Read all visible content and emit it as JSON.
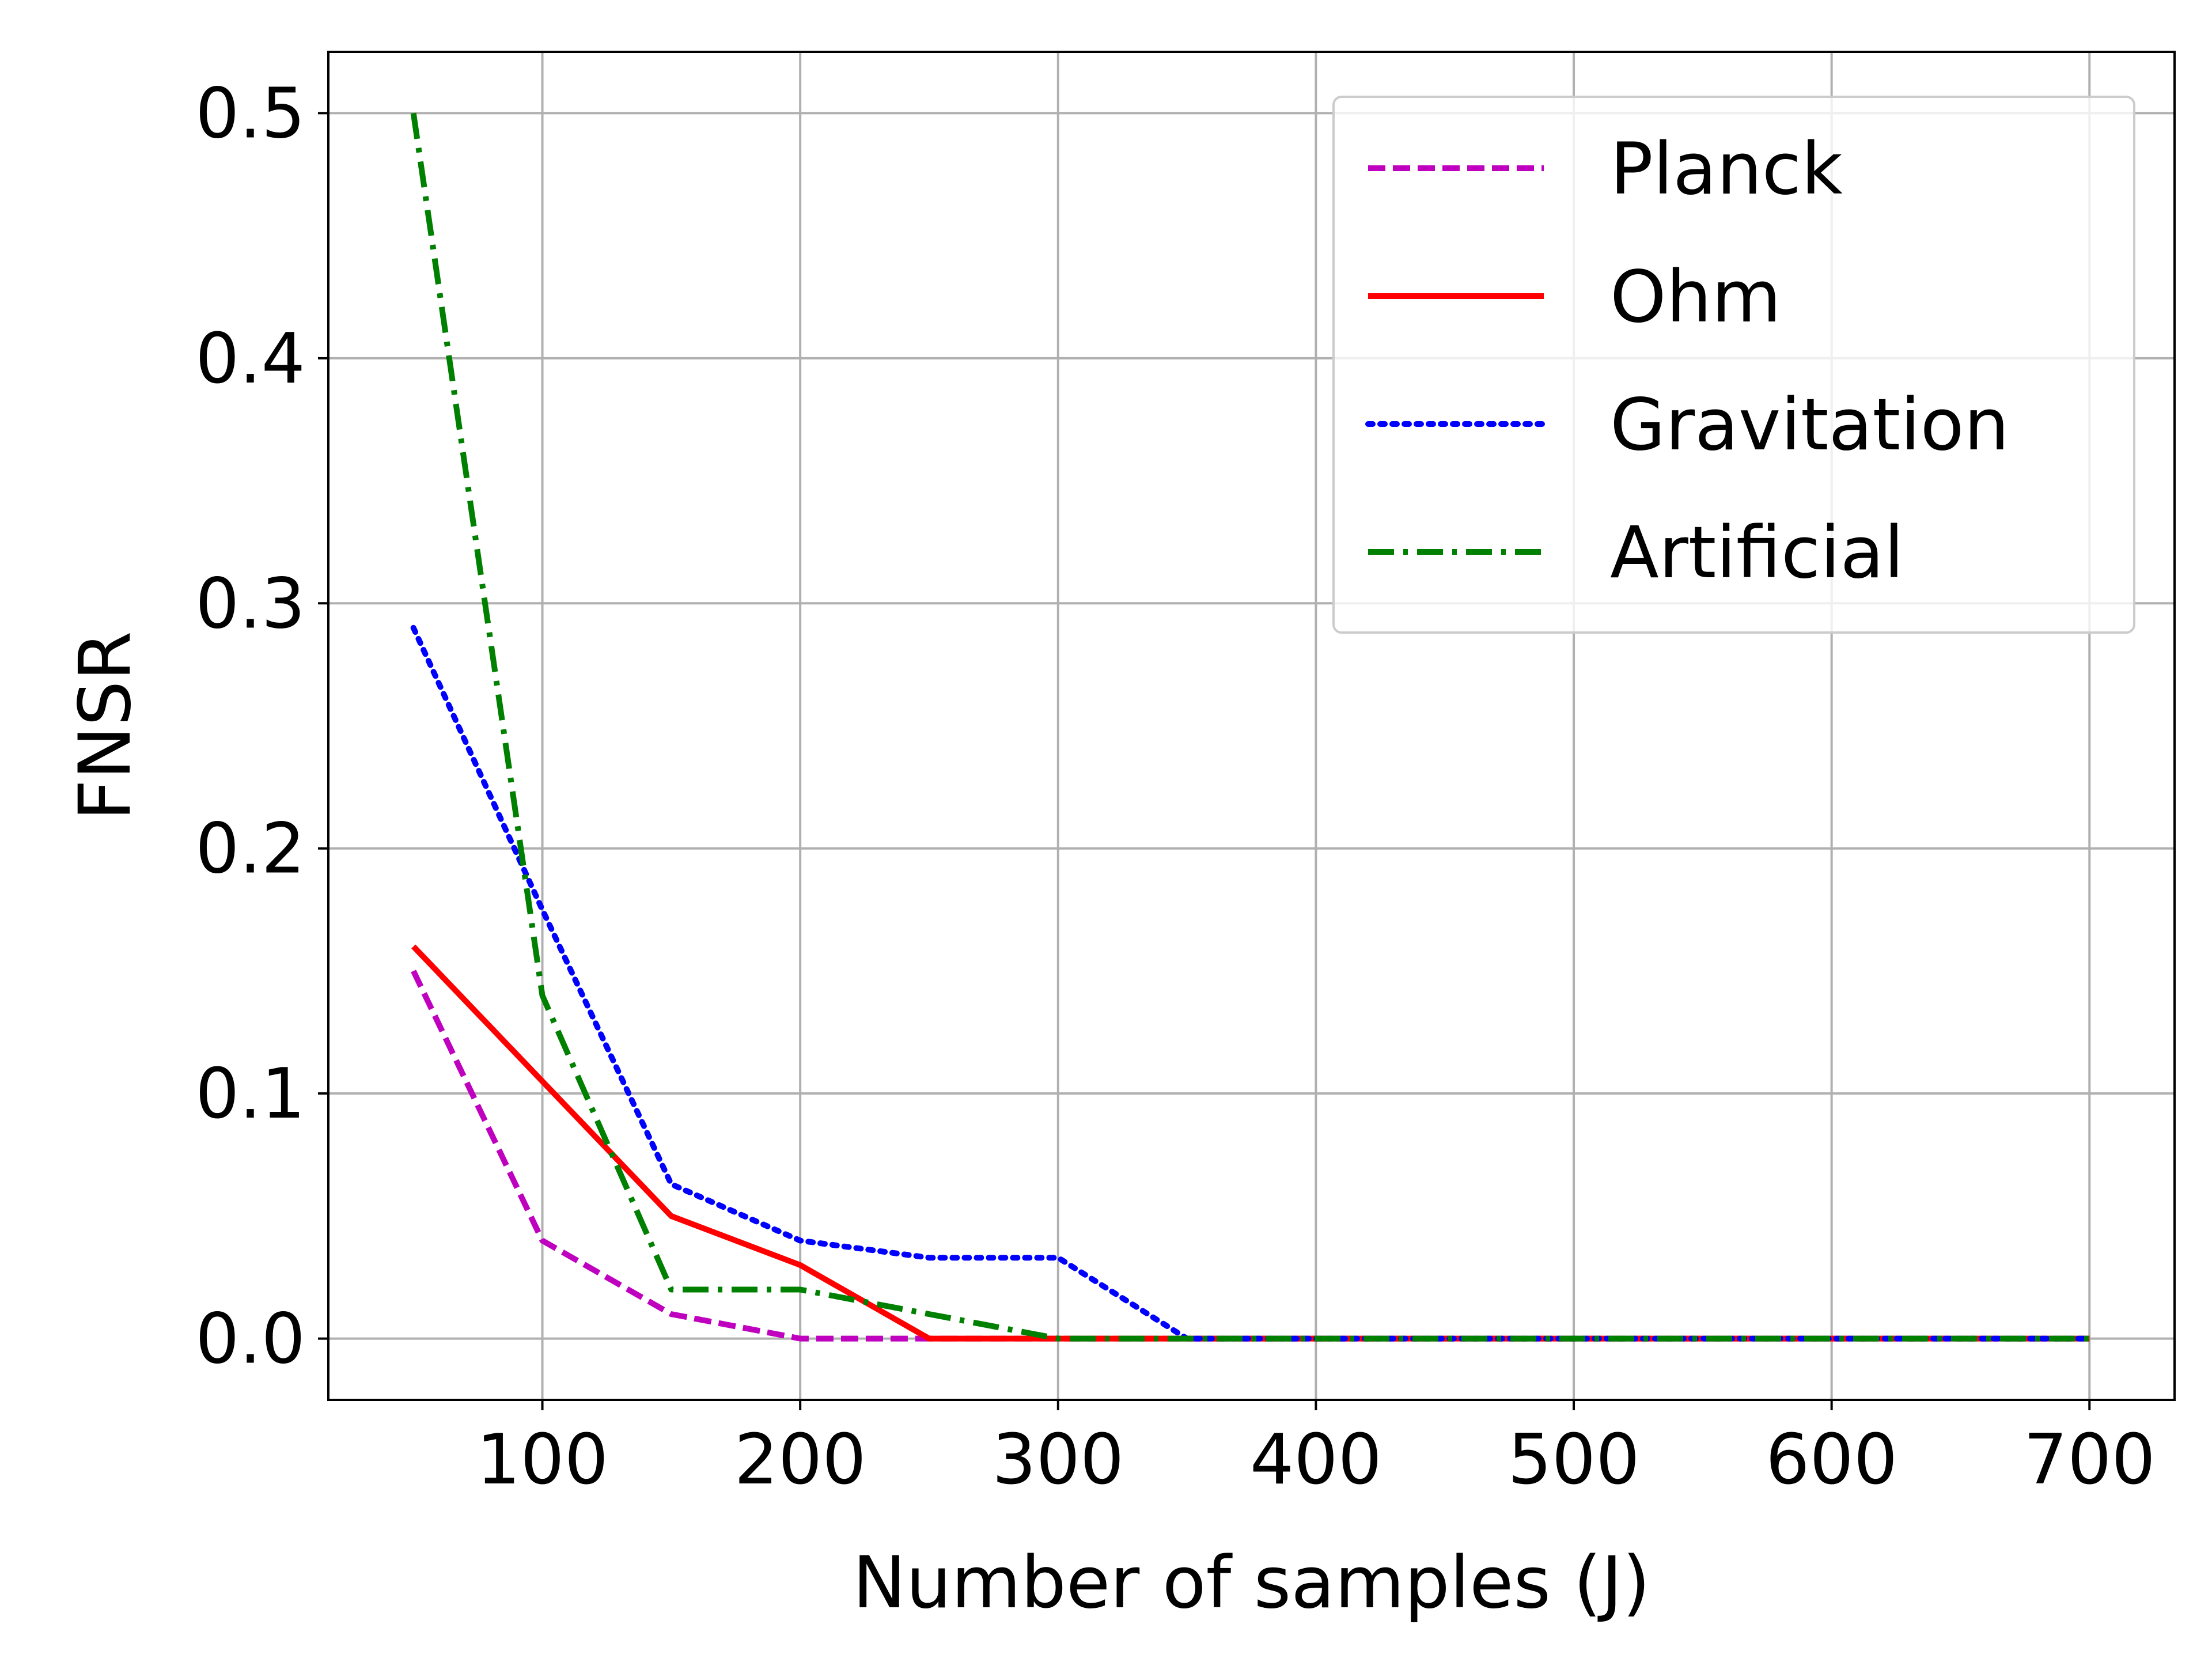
{
  "chart_data": {
    "type": "line",
    "title": "",
    "xlabel": "Number of samples (J)",
    "ylabel": "FNSR",
    "xlim": [
      17,
      733
    ],
    "ylim": [
      -0.025,
      0.525
    ],
    "xticks": [
      100,
      200,
      300,
      400,
      500,
      600,
      700
    ],
    "yticks": [
      0.0,
      0.1,
      0.2,
      0.3,
      0.4,
      0.5
    ],
    "ytick_labels": [
      "0.0",
      "0.1",
      "0.2",
      "0.3",
      "0.4",
      "0.5"
    ],
    "grid": true,
    "legend_position": "top-right",
    "x": [
      50,
      100,
      150,
      200,
      250,
      300,
      350,
      400,
      450,
      500,
      550,
      600,
      650,
      700
    ],
    "series": [
      {
        "name": "Planck",
        "color": "#bf00bf",
        "style": "dashed",
        "values": [
          0.15,
          0.04,
          0.01,
          0.0,
          0.0,
          0.0,
          0.0,
          0.0,
          0.0,
          0.0,
          0.0,
          0.0,
          0.0,
          0.0
        ]
      },
      {
        "name": "Ohm",
        "color": "#ff0000",
        "style": "solid",
        "values": [
          0.16,
          0.105,
          0.05,
          0.03,
          0.0,
          0.0,
          0.0,
          0.0,
          0.0,
          0.0,
          0.0,
          0.0,
          0.0,
          0.0
        ]
      },
      {
        "name": "Gravitation",
        "color": "#0000ff",
        "style": "dotted",
        "values": [
          0.29,
          0.175,
          0.063,
          0.04,
          0.033,
          0.033,
          0.0,
          0.0,
          0.0,
          0.0,
          0.0,
          0.0,
          0.0,
          0.0
        ]
      },
      {
        "name": "Artificial",
        "color": "#008000",
        "style": "dashdot",
        "values": [
          0.5,
          0.14,
          0.02,
          0.02,
          0.01,
          0.0,
          0.0,
          0.0,
          0.0,
          0.0,
          0.0,
          0.0,
          0.0,
          0.0
        ]
      }
    ]
  }
}
